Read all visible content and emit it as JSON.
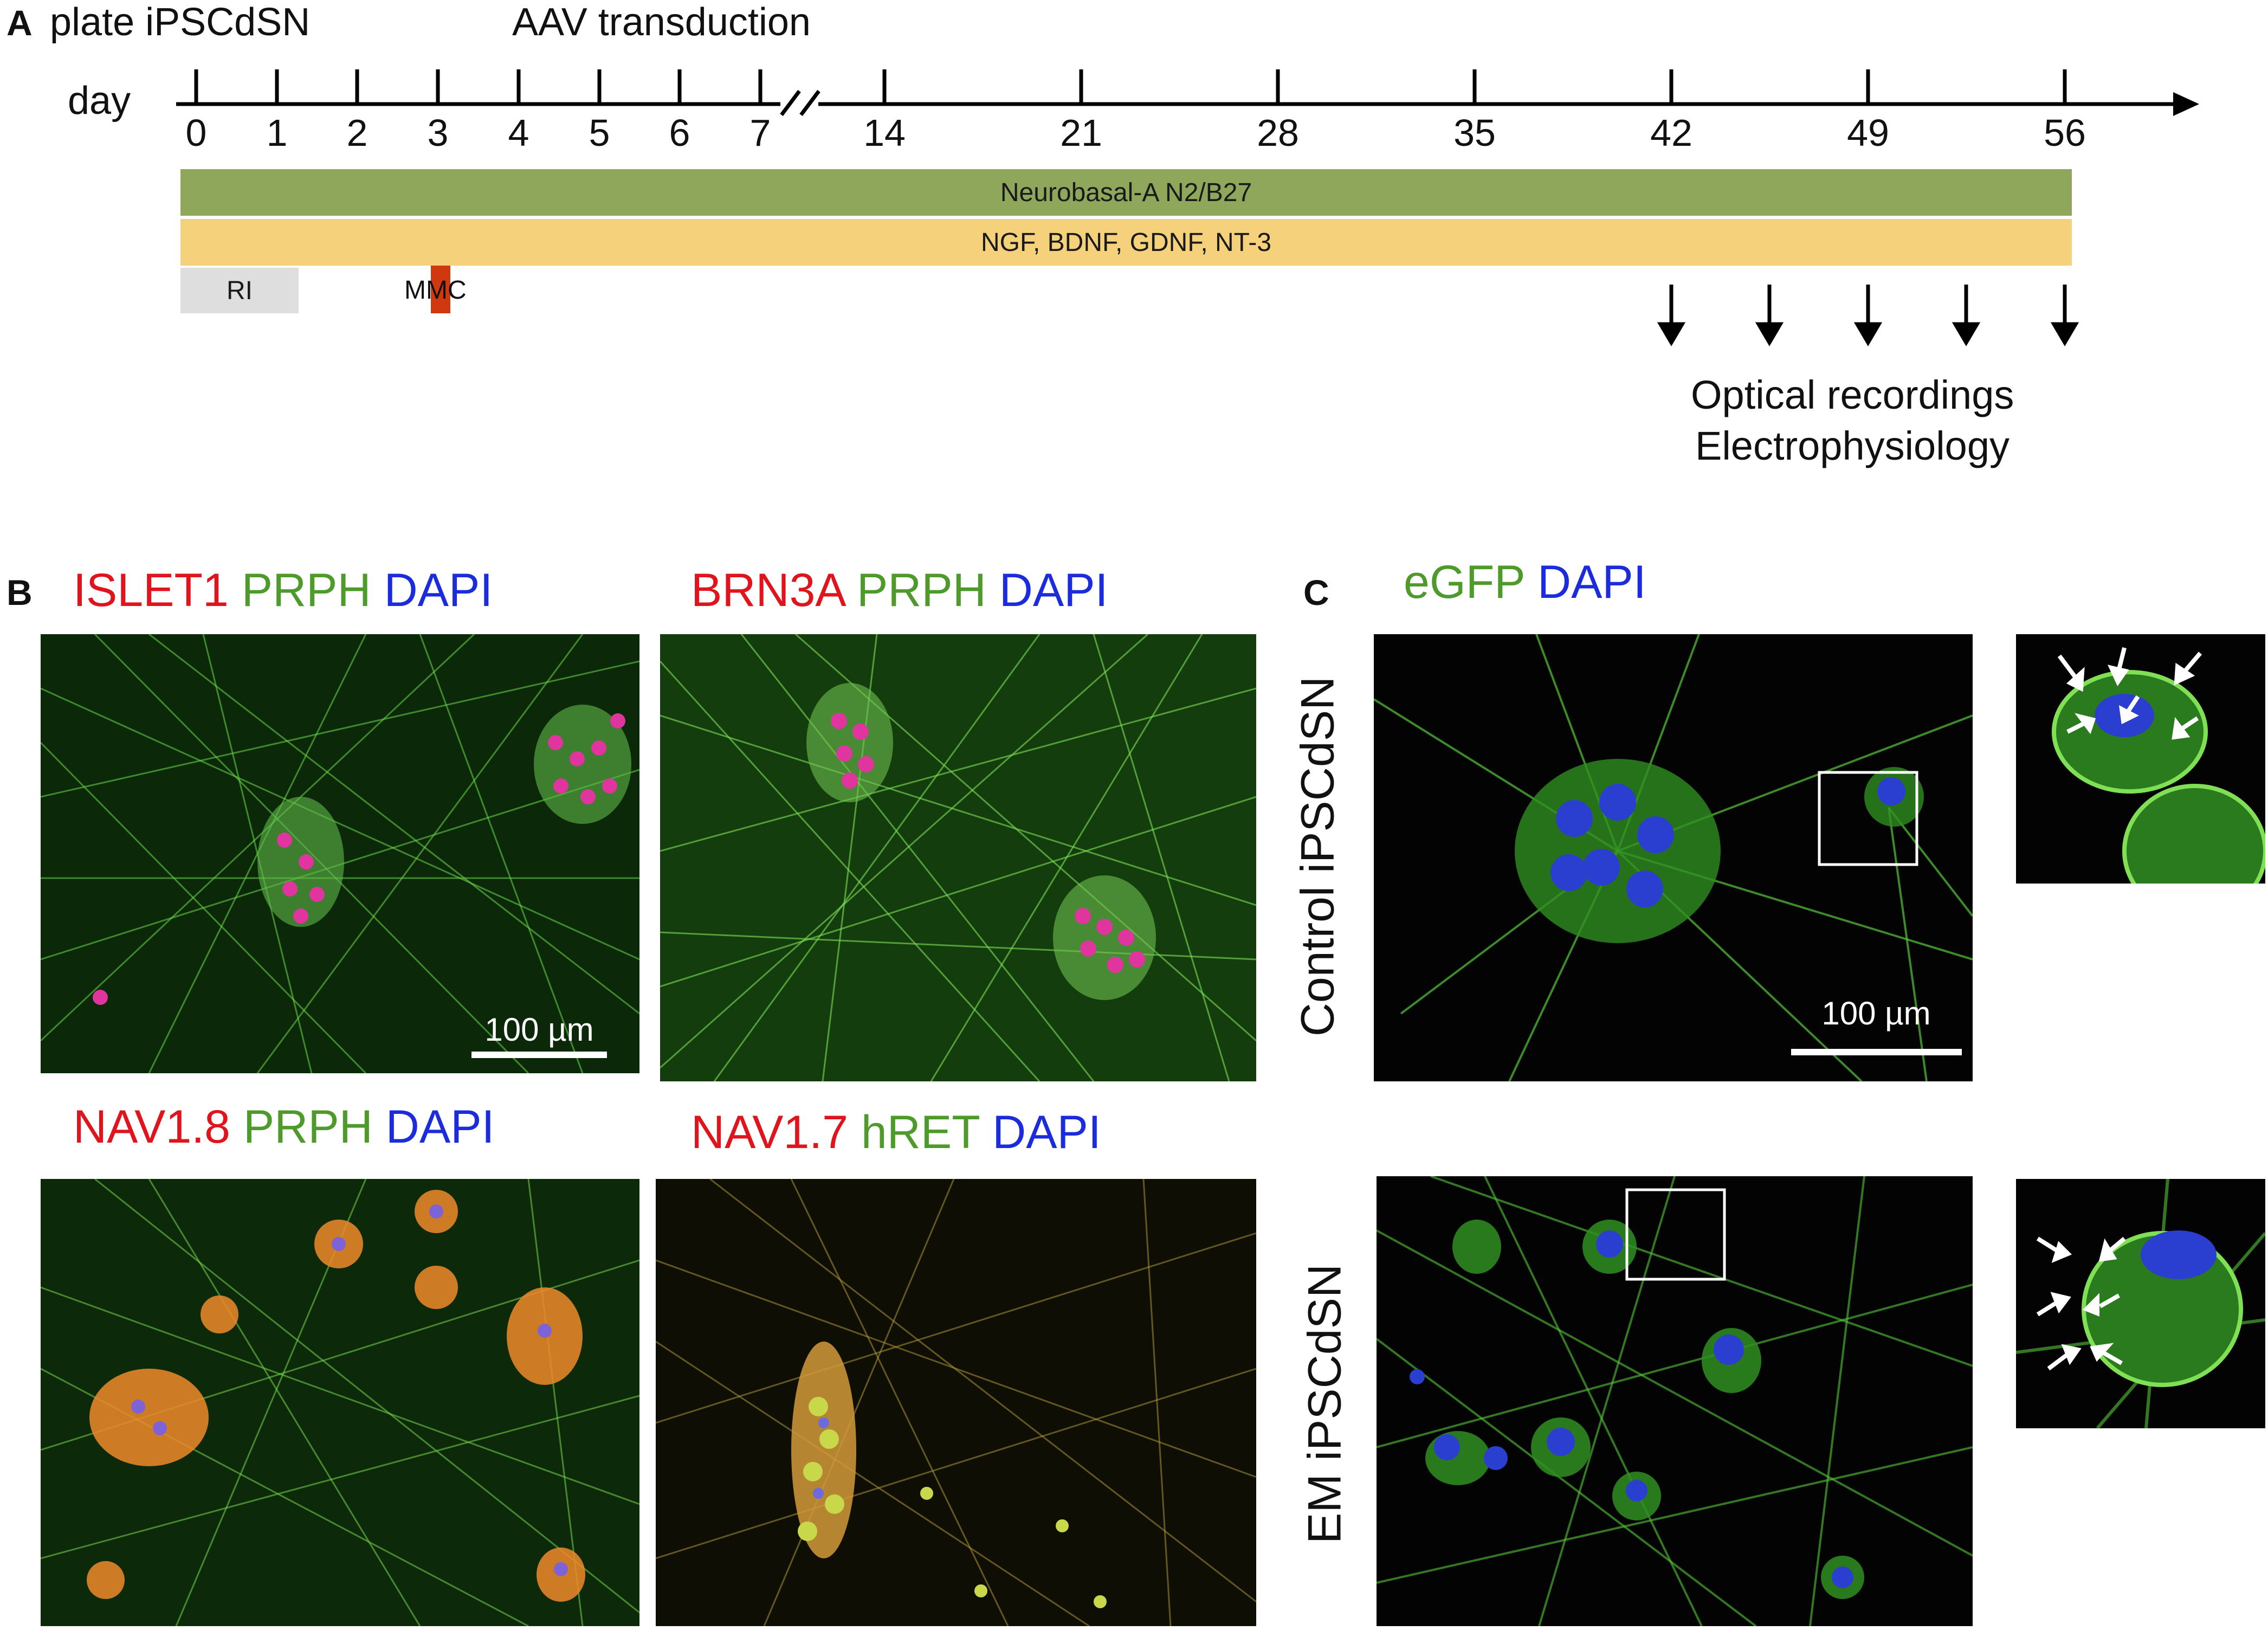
{
  "panelA": {
    "letter": "A",
    "plate_label": "plate iPSCdSN",
    "aav_label": "AAV transduction",
    "day_label": "day",
    "ticks": [
      "0",
      "1",
      "2",
      "3",
      "4",
      "5",
      "6",
      "7",
      "14",
      "21",
      "28",
      "35",
      "42",
      "49",
      "56"
    ],
    "medium_bar": "Neurobasal-A N2/B27",
    "factor_bar": "NGF, BDNF, GDNF, NT-3",
    "ri_label": "RI",
    "mmc_label": "MMC",
    "recordings_line1": "Optical recordings",
    "recordings_line2": "Electrophysiology",
    "colors": {
      "medium": "#8fa75b",
      "factors": "#f5d17c",
      "ri": "#dedede",
      "mmc": "#d0390f"
    }
  },
  "panelB": {
    "letter": "B",
    "img1": {
      "t1": "ISLET1",
      "t2": "PRPH",
      "t3": "DAPI",
      "scale": "100 µm"
    },
    "img2": {
      "t1": "BRN3A",
      "t2": "PRPH",
      "t3": "DAPI"
    },
    "img3": {
      "t1": "NAV1.8",
      "t2": "PRPH",
      "t3": "DAPI"
    },
    "img4": {
      "t1": "NAV1.7",
      "t2": "hRET",
      "t3": "DAPI"
    }
  },
  "panelC": {
    "letter": "C",
    "t1": "eGFP",
    "t2": "DAPI",
    "row1_label": "Control iPSCdSN",
    "row2_label": "EM iPSCdSN",
    "scale": "100 µm"
  },
  "colors": {
    "red": "#e0141c",
    "green": "#4e9a2a",
    "blue": "#1a2cdc"
  }
}
